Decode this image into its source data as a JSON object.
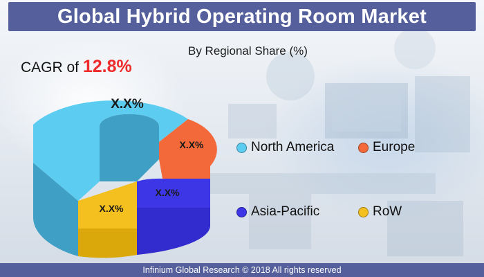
{
  "header": {
    "title": "Global Hybrid Operating Room Market"
  },
  "cagr": {
    "prefix": "CAGR of ",
    "value": "12.8%"
  },
  "footer": {
    "text": "Infinium Global Research © 2018 All rights reserved"
  },
  "chart_data": {
    "type": "pie",
    "subtitle": "By Regional Share (%)",
    "donut": true,
    "three_d": true,
    "series": [
      {
        "name": "North America",
        "label": "X.X%",
        "share": 0.46,
        "color": "#5ccdf1",
        "side_color": "#3f9fc4"
      },
      {
        "name": "Europe",
        "label": "X.X%",
        "share": 0.14,
        "color": "#f4693a",
        "side_color": "#c94210"
      },
      {
        "name": "Asia-Pacific",
        "label": "X.X%",
        "share": 0.26,
        "color": "#3d36e6",
        "side_color": "#2a23b8"
      },
      {
        "name": "RoW",
        "label": "X.X%",
        "share": 0.14,
        "color": "#f4c01f",
        "side_color": "#c99700"
      }
    ],
    "legend": {
      "position": "right",
      "layout": "2x2"
    }
  }
}
